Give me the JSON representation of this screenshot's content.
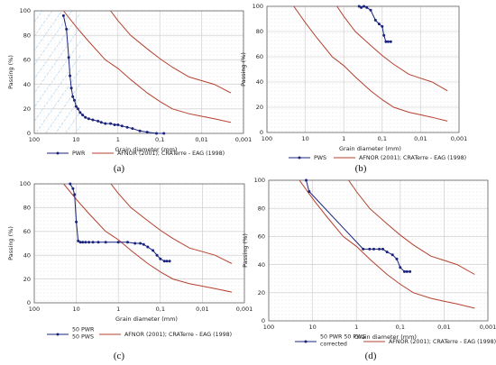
{
  "colors": {
    "sample": "#1a237e",
    "limits": "#b5402f",
    "grid": "#c8c8c8",
    "hatch": "#8fc4ec"
  },
  "common": {
    "xlabel": "Grain diameter (mm)",
    "ylabel": "Passing (%)",
    "limits_legend": "AFNOR (2001); CRATerre - EAG (1998)",
    "x_ticks": [
      "100",
      "10",
      "1",
      "0,1",
      "0,01",
      "0,001"
    ],
    "y_ticks": [
      "0",
      "20",
      "40",
      "60",
      "80",
      "100"
    ]
  },
  "chart_data": [
    {
      "type": "line",
      "panel_label": "(a)",
      "x_scale": "log-reversed",
      "xlim": [
        100,
        0.001
      ],
      "ylim": [
        0,
        100
      ],
      "hatched": true,
      "series": [
        {
          "name": "PWR",
          "legend_lines": [
            "PWR"
          ],
          "marker": "dot",
          "x": [
            20,
            17,
            15,
            14,
            13,
            12,
            11,
            10,
            9,
            8,
            7,
            6,
            5,
            4,
            3,
            2.5,
            2,
            1.5,
            1.2,
            1.0,
            0.8,
            0.6,
            0.45,
            0.3,
            0.2,
            0.12,
            0.08
          ],
          "y": [
            96,
            85,
            62,
            47,
            37,
            30,
            27,
            22,
            20,
            17,
            15,
            13,
            12,
            11,
            10,
            9,
            8,
            8,
            7,
            7,
            6,
            5,
            4,
            2,
            1,
            0,
            0
          ]
        }
      ],
      "limits": [
        {
          "x": [
            20,
            10,
            5,
            2,
            1,
            0.5,
            0.2,
            0.1,
            0.05,
            0.02,
            0.01,
            0.005,
            0.002
          ],
          "y": [
            100,
            87,
            75,
            60,
            53,
            44,
            33,
            26,
            20,
            16,
            14,
            12,
            9
          ]
        },
        {
          "x": [
            1.5,
            1,
            0.5,
            0.2,
            0.1,
            0.05,
            0.02,
            0.01,
            0.005,
            0.002
          ],
          "y": [
            100,
            92,
            80,
            69,
            61,
            54,
            46,
            43,
            40,
            33
          ]
        }
      ]
    },
    {
      "type": "line",
      "panel_label": "(b)",
      "x_scale": "log-reversed",
      "xlim": [
        100,
        0.001
      ],
      "ylim": [
        0,
        100
      ],
      "hatched": false,
      "series": [
        {
          "name": "PWS",
          "legend_lines": [
            "PWS"
          ],
          "marker": "dot",
          "x": [
            0.4,
            0.35,
            0.3,
            0.25,
            0.2,
            0.15,
            0.12,
            0.1,
            0.09,
            0.08,
            0.07,
            0.06
          ],
          "y": [
            100,
            99,
            100,
            99,
            97,
            89,
            86,
            84,
            77,
            72,
            72,
            72
          ]
        }
      ],
      "limits": [
        {
          "x": [
            20,
            10,
            5,
            2,
            1,
            0.5,
            0.2,
            0.1,
            0.05,
            0.02,
            0.01,
            0.005,
            0.002
          ],
          "y": [
            100,
            87,
            75,
            60,
            53,
            44,
            33,
            26,
            20,
            16,
            14,
            12,
            9
          ]
        },
        {
          "x": [
            1.5,
            1,
            0.5,
            0.2,
            0.1,
            0.05,
            0.02,
            0.01,
            0.005,
            0.002
          ],
          "y": [
            100,
            92,
            80,
            69,
            61,
            54,
            46,
            43,
            40,
            33
          ]
        }
      ]
    },
    {
      "type": "line",
      "panel_label": "(c)",
      "x_scale": "log-reversed",
      "xlim": [
        100,
        0.001
      ],
      "ylim": [
        0,
        100
      ],
      "hatched": false,
      "series": [
        {
          "name": "50 PWR 50 PWS",
          "legend_lines": [
            "50 PWR",
            "50 PWS"
          ],
          "marker": "dot",
          "x": [
            14,
            12,
            11,
            10,
            9,
            8,
            7,
            6,
            5,
            4,
            3,
            2,
            1,
            0.6,
            0.4,
            0.3,
            0.25,
            0.2,
            0.15,
            0.12,
            0.1,
            0.08,
            0.07,
            0.06
          ],
          "y": [
            100,
            96,
            91,
            68,
            52,
            51,
            51,
            51,
            51,
            51,
            51,
            51,
            51,
            51,
            50,
            50,
            49,
            47,
            44,
            40,
            37,
            35,
            35,
            35
          ]
        }
      ],
      "limits": [
        {
          "x": [
            20,
            10,
            5,
            2,
            1,
            0.5,
            0.2,
            0.1,
            0.05,
            0.02,
            0.01,
            0.005,
            0.002
          ],
          "y": [
            100,
            87,
            75,
            60,
            53,
            44,
            33,
            26,
            20,
            16,
            14,
            12,
            9
          ]
        },
        {
          "x": [
            1.5,
            1,
            0.5,
            0.2,
            0.1,
            0.05,
            0.02,
            0.01,
            0.005,
            0.002
          ],
          "y": [
            100,
            92,
            80,
            69,
            61,
            54,
            46,
            43,
            40,
            33
          ]
        }
      ]
    },
    {
      "type": "line",
      "panel_label": "(d)",
      "x_scale": "log-reversed",
      "xlim": [
        100,
        0.001
      ],
      "ylim": [
        0,
        100
      ],
      "hatched": false,
      "series": [
        {
          "name": "50 PWR 50 PWS corrected",
          "legend_lines": [
            "50 PWR 50 PWS",
            "corrected"
          ],
          "marker": "dot",
          "x": [
            14,
            12,
            0.7,
            0.5,
            0.4,
            0.3,
            0.25,
            0.2,
            0.15,
            0.12,
            0.1,
            0.08,
            0.07,
            0.06
          ],
          "y": [
            100,
            92,
            51,
            51,
            51,
            51,
            51,
            49,
            47,
            44,
            38,
            35,
            35,
            35
          ]
        }
      ],
      "limits": [
        {
          "x": [
            20,
            10,
            5,
            2,
            1,
            0.5,
            0.2,
            0.1,
            0.05,
            0.02,
            0.01,
            0.005,
            0.002
          ],
          "y": [
            100,
            87,
            75,
            60,
            53,
            44,
            33,
            26,
            20,
            16,
            14,
            12,
            9
          ]
        },
        {
          "x": [
            1.5,
            1,
            0.5,
            0.2,
            0.1,
            0.05,
            0.02,
            0.01,
            0.005,
            0.002
          ],
          "y": [
            100,
            92,
            80,
            69,
            61,
            54,
            46,
            43,
            40,
            33
          ]
        }
      ]
    }
  ]
}
